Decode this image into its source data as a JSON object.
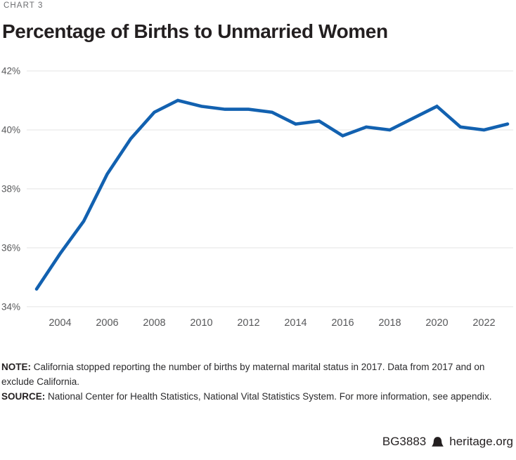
{
  "header": {
    "eyebrow": "CHART 3",
    "title": "Percentage of Births to Unmarried Women"
  },
  "chart_data": {
    "type": "line",
    "title": "Percentage of Births to Unmarried Women",
    "series_name": "Percent of births to unmarried women",
    "x": [
      2003,
      2004,
      2005,
      2006,
      2007,
      2008,
      2009,
      2010,
      2011,
      2012,
      2013,
      2014,
      2015,
      2016,
      2017,
      2018,
      2019,
      2020,
      2021,
      2022,
      2023
    ],
    "values": [
      34.6,
      35.8,
      36.9,
      38.5,
      39.7,
      40.6,
      41.0,
      40.8,
      40.7,
      40.7,
      40.6,
      40.2,
      40.3,
      39.8,
      40.1,
      40.0,
      40.4,
      40.8,
      40.1,
      40.0,
      40.2
    ],
    "xlabel": "",
    "ylabel": "",
    "ylim": [
      34,
      42
    ],
    "yticks": [
      42,
      40,
      38,
      36,
      34
    ],
    "ytick_labels": [
      "42%",
      "40%",
      "38%",
      "36%",
      "34%"
    ],
    "xticks": [
      2004,
      2006,
      2008,
      2010,
      2012,
      2014,
      2016,
      2018,
      2020,
      2022
    ],
    "grid": "horizontal",
    "legend": "none",
    "colors": {
      "line": "#1261b0",
      "gridline": "#e5e5e5",
      "tick_label": "#58595b"
    }
  },
  "notes": {
    "note_label": "NOTE:",
    "note_line1": "California stopped reporting the number of births by maternal marital status in 2017. Data from 2017 and on",
    "note_line2": "exclude California.",
    "source_label": "SOURCE:",
    "source_text": "National Center for Health Statistics, National Vital Statistics System. For more information, see appendix."
  },
  "footer": {
    "doc_id": "BG3883",
    "site": "heritage.org",
    "logo": "heritage-bell-icon"
  }
}
